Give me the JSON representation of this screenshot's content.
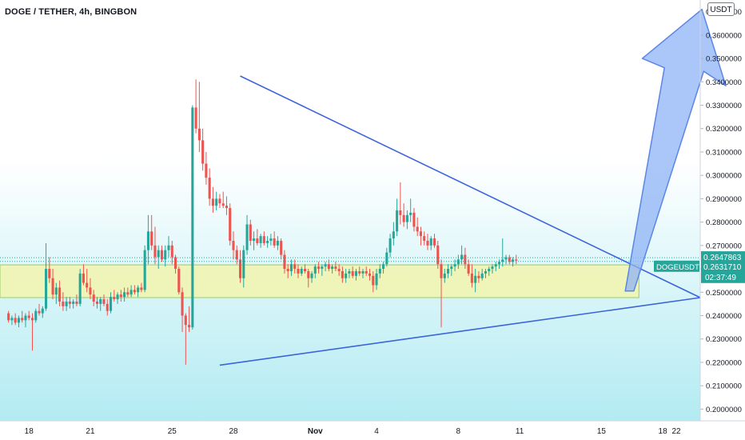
{
  "header": {
    "title": "DOGE / TETHER, 4h, BINGBON",
    "unit": "USDT"
  },
  "colors": {
    "up": "#26a69a",
    "down": "#ef5350",
    "trendline": "#3c64dc",
    "zone_fill": "#f2f4ae",
    "zone_stroke": "#9ccc65",
    "arrow_fill": "#8fb3f5",
    "arrow_stroke": "#5a86e6",
    "bg_top": "#ffffff",
    "bg_bottom": "#b2ebf2"
  },
  "chart_data": {
    "type": "candlestick",
    "y_axis": {
      "ylim": [
        0.195,
        0.375
      ],
      "ticks": [
        0.2,
        0.21,
        0.22,
        0.23,
        0.24,
        0.25,
        0.26,
        0.27,
        0.28,
        0.29,
        0.3,
        0.31,
        0.32,
        0.33,
        0.34,
        0.35,
        0.36,
        0.37
      ],
      "tick_labels": [
        "0.2000000",
        "0.2100000",
        "0.2200000",
        "0.2300000",
        "0.2400000",
        "0.2500000",
        "0.2600000",
        "0.2700000",
        "0.2800000",
        "0.2900000",
        "0.3000000",
        "0.3100000",
        "0.3200000",
        "0.3300000",
        "0.3400000",
        "0.3500000",
        "0.3600000",
        "0.3700000"
      ]
    },
    "x_axis": {
      "xlim": [
        -2.5,
        203
      ],
      "ticks": [
        {
          "label": "18",
          "bar": 6
        },
        {
          "label": "21",
          "bar": 24
        },
        {
          "label": "25",
          "bar": 48
        },
        {
          "label": "28",
          "bar": 66
        },
        {
          "label": "Nov",
          "bar": 90
        },
        {
          "label": "4",
          "bar": 108
        },
        {
          "label": "8",
          "bar": 132
        },
        {
          "label": "11",
          "bar": 150
        },
        {
          "label": "15",
          "bar": 174
        },
        {
          "label": "18",
          "bar": 192
        },
        {
          "label": "22",
          "bar": 216
        }
      ]
    },
    "price_lines": [
      {
        "value": 0.2647863,
        "label": "0.2647863",
        "color": "#26a69a"
      },
      {
        "value": 0.263171,
        "label": "0.2631710",
        "color": "#26a69a"
      }
    ],
    "symbol_label": "DOGEUSDT",
    "countdown": "02:37:49",
    "support_zone": {
      "bar_start": -2.5,
      "bar_end": 185,
      "low": 0.2477,
      "high": 0.2617
    },
    "triangle": {
      "upper": [
        {
          "bar": 68,
          "price": 0.3425
        },
        {
          "bar": 182,
          "price": 0.2626
        }
      ],
      "apex": {
        "bar": 203,
        "price": 0.2477
      },
      "lower": [
        {
          "bar": 62,
          "price": 0.2188
        },
        {
          "bar": 203,
          "price": 0.2477
        }
      ]
    },
    "arrow": {
      "body": [
        {
          "bar": 181,
          "price": 0.2505
        },
        {
          "bar": 183.5,
          "price": 0.2505
        },
        {
          "bar": 204,
          "price": 0.3445
        },
        {
          "bar": 210.5,
          "price": 0.3383
        },
        {
          "bar": 203.5,
          "price": 0.371
        },
        {
          "bar": 186,
          "price": 0.35
        },
        {
          "bar": 192.5,
          "price": 0.346
        }
      ]
    },
    "ohlc": [
      [
        0.241,
        0.242,
        0.237,
        0.238
      ],
      [
        0.238,
        0.24,
        0.236,
        0.239
      ],
      [
        0.239,
        0.241,
        0.236,
        0.237
      ],
      [
        0.237,
        0.24,
        0.235,
        0.239
      ],
      [
        0.239,
        0.242,
        0.237,
        0.238
      ],
      [
        0.238,
        0.241,
        0.235,
        0.24
      ],
      [
        0.24,
        0.242,
        0.238,
        0.239
      ],
      [
        0.239,
        0.241,
        0.225,
        0.238
      ],
      [
        0.238,
        0.243,
        0.237,
        0.242
      ],
      [
        0.242,
        0.245,
        0.24,
        0.241
      ],
      [
        0.241,
        0.244,
        0.239,
        0.243
      ],
      [
        0.243,
        0.271,
        0.242,
        0.26
      ],
      [
        0.26,
        0.265,
        0.254,
        0.256
      ],
      [
        0.256,
        0.26,
        0.247,
        0.249
      ],
      [
        0.249,
        0.254,
        0.245,
        0.252
      ],
      [
        0.252,
        0.255,
        0.244,
        0.246
      ],
      [
        0.246,
        0.25,
        0.242,
        0.244
      ],
      [
        0.244,
        0.248,
        0.242,
        0.246
      ],
      [
        0.246,
        0.248,
        0.243,
        0.245
      ],
      [
        0.245,
        0.247,
        0.243,
        0.246
      ],
      [
        0.246,
        0.249,
        0.244,
        0.245
      ],
      [
        0.245,
        0.26,
        0.244,
        0.258
      ],
      [
        0.258,
        0.262,
        0.253,
        0.254
      ],
      [
        0.254,
        0.26,
        0.25,
        0.252
      ],
      [
        0.252,
        0.256,
        0.247,
        0.249
      ],
      [
        0.249,
        0.251,
        0.244,
        0.246
      ],
      [
        0.246,
        0.248,
        0.243,
        0.245
      ],
      [
        0.245,
        0.248,
        0.242,
        0.247
      ],
      [
        0.247,
        0.249,
        0.244,
        0.245
      ],
      [
        0.245,
        0.247,
        0.24,
        0.242
      ],
      [
        0.242,
        0.25,
        0.241,
        0.248
      ],
      [
        0.248,
        0.251,
        0.246,
        0.247
      ],
      [
        0.247,
        0.25,
        0.245,
        0.249
      ],
      [
        0.249,
        0.251,
        0.246,
        0.248
      ],
      [
        0.248,
        0.252,
        0.246,
        0.25
      ],
      [
        0.25,
        0.252,
        0.248,
        0.249
      ],
      [
        0.249,
        0.253,
        0.248,
        0.251
      ],
      [
        0.251,
        0.253,
        0.249,
        0.25
      ],
      [
        0.25,
        0.253,
        0.248,
        0.252
      ],
      [
        0.252,
        0.254,
        0.25,
        0.251
      ],
      [
        0.251,
        0.27,
        0.25,
        0.268
      ],
      [
        0.268,
        0.283,
        0.262,
        0.276
      ],
      [
        0.276,
        0.283,
        0.268,
        0.27
      ],
      [
        0.27,
        0.278,
        0.262,
        0.265
      ],
      [
        0.265,
        0.27,
        0.26,
        0.268
      ],
      [
        0.268,
        0.27,
        0.263,
        0.264
      ],
      [
        0.264,
        0.27,
        0.261,
        0.268
      ],
      [
        0.268,
        0.274,
        0.265,
        0.27
      ],
      [
        0.27,
        0.272,
        0.262,
        0.265
      ],
      [
        0.265,
        0.266,
        0.258,
        0.26
      ],
      [
        0.26,
        0.261,
        0.249,
        0.25
      ],
      [
        0.25,
        0.252,
        0.233,
        0.24
      ],
      [
        0.24,
        0.241,
        0.219,
        0.236
      ],
      [
        0.236,
        0.244,
        0.233,
        0.235
      ],
      [
        0.235,
        0.33,
        0.234,
        0.329
      ],
      [
        0.329,
        0.341,
        0.318,
        0.32
      ],
      [
        0.32,
        0.34,
        0.31,
        0.315
      ],
      [
        0.315,
        0.32,
        0.302,
        0.305
      ],
      [
        0.305,
        0.31,
        0.296,
        0.299
      ],
      [
        0.299,
        0.303,
        0.287,
        0.29
      ],
      [
        0.29,
        0.295,
        0.284,
        0.287
      ],
      [
        0.287,
        0.293,
        0.285,
        0.29
      ],
      [
        0.29,
        0.292,
        0.286,
        0.288
      ],
      [
        0.288,
        0.293,
        0.286,
        0.287
      ],
      [
        0.287,
        0.291,
        0.283,
        0.286
      ],
      [
        0.286,
        0.288,
        0.27,
        0.272
      ],
      [
        0.272,
        0.276,
        0.264,
        0.268
      ],
      [
        0.268,
        0.27,
        0.262,
        0.264
      ],
      [
        0.264,
        0.268,
        0.254,
        0.256
      ],
      [
        0.256,
        0.27,
        0.252,
        0.268
      ],
      [
        0.268,
        0.283,
        0.266,
        0.279
      ],
      [
        0.279,
        0.281,
        0.27,
        0.272
      ],
      [
        0.272,
        0.276,
        0.268,
        0.273
      ],
      [
        0.273,
        0.277,
        0.27,
        0.271
      ],
      [
        0.271,
        0.275,
        0.269,
        0.274
      ],
      [
        0.274,
        0.276,
        0.27,
        0.271
      ],
      [
        0.271,
        0.274,
        0.269,
        0.272
      ],
      [
        0.272,
        0.275,
        0.27,
        0.273
      ],
      [
        0.273,
        0.276,
        0.269,
        0.27
      ],
      [
        0.27,
        0.274,
        0.268,
        0.272
      ],
      [
        0.272,
        0.273,
        0.264,
        0.266
      ],
      [
        0.266,
        0.268,
        0.258,
        0.26
      ],
      [
        0.26,
        0.262,
        0.256,
        0.259
      ],
      [
        0.259,
        0.264,
        0.257,
        0.262
      ],
      [
        0.262,
        0.264,
        0.258,
        0.26
      ],
      [
        0.26,
        0.262,
        0.256,
        0.258
      ],
      [
        0.258,
        0.261,
        0.257,
        0.26
      ],
      [
        0.26,
        0.262,
        0.258,
        0.259
      ],
      [
        0.259,
        0.26,
        0.252,
        0.256
      ],
      [
        0.256,
        0.259,
        0.254,
        0.258
      ],
      [
        0.258,
        0.262,
        0.256,
        0.261
      ],
      [
        0.261,
        0.263,
        0.258,
        0.26
      ],
      [
        0.26,
        0.262,
        0.257,
        0.261
      ],
      [
        0.261,
        0.263,
        0.259,
        0.262
      ],
      [
        0.262,
        0.264,
        0.259,
        0.26
      ],
      [
        0.26,
        0.262,
        0.258,
        0.261
      ],
      [
        0.261,
        0.263,
        0.259,
        0.26
      ],
      [
        0.26,
        0.262,
        0.257,
        0.259
      ],
      [
        0.259,
        0.261,
        0.254,
        0.256
      ],
      [
        0.256,
        0.26,
        0.254,
        0.258
      ],
      [
        0.258,
        0.26,
        0.256,
        0.259
      ],
      [
        0.259,
        0.261,
        0.256,
        0.257
      ],
      [
        0.257,
        0.26,
        0.255,
        0.259
      ],
      [
        0.259,
        0.261,
        0.257,
        0.258
      ],
      [
        0.258,
        0.26,
        0.256,
        0.259
      ],
      [
        0.259,
        0.261,
        0.257,
        0.258
      ],
      [
        0.258,
        0.26,
        0.255,
        0.257
      ],
      [
        0.257,
        0.259,
        0.25,
        0.253
      ],
      [
        0.253,
        0.26,
        0.251,
        0.258
      ],
      [
        0.258,
        0.262,
        0.256,
        0.26
      ],
      [
        0.26,
        0.263,
        0.258,
        0.262
      ],
      [
        0.262,
        0.269,
        0.261,
        0.267
      ],
      [
        0.267,
        0.275,
        0.265,
        0.273
      ],
      [
        0.273,
        0.28,
        0.27,
        0.276
      ],
      [
        0.276,
        0.29,
        0.274,
        0.285
      ],
      [
        0.285,
        0.297,
        0.279,
        0.283
      ],
      [
        0.283,
        0.288,
        0.278,
        0.28
      ],
      [
        0.28,
        0.285,
        0.277,
        0.283
      ],
      [
        0.283,
        0.29,
        0.28,
        0.284
      ],
      [
        0.284,
        0.286,
        0.276,
        0.278
      ],
      [
        0.278,
        0.282,
        0.274,
        0.276
      ],
      [
        0.276,
        0.278,
        0.27,
        0.274
      ],
      [
        0.274,
        0.276,
        0.27,
        0.272
      ],
      [
        0.272,
        0.275,
        0.268,
        0.27
      ],
      [
        0.27,
        0.274,
        0.268,
        0.273
      ],
      [
        0.273,
        0.275,
        0.269,
        0.27
      ],
      [
        0.27,
        0.272,
        0.26,
        0.262
      ],
      [
        0.262,
        0.264,
        0.235,
        0.256
      ],
      [
        0.256,
        0.26,
        0.254,
        0.258
      ],
      [
        0.258,
        0.262,
        0.256,
        0.26
      ],
      [
        0.26,
        0.262,
        0.257,
        0.261
      ],
      [
        0.261,
        0.264,
        0.259,
        0.262
      ],
      [
        0.262,
        0.266,
        0.26,
        0.264
      ],
      [
        0.264,
        0.27,
        0.262,
        0.266
      ],
      [
        0.266,
        0.269,
        0.26,
        0.262
      ],
      [
        0.262,
        0.264,
        0.257,
        0.258
      ],
      [
        0.258,
        0.262,
        0.252,
        0.254
      ],
      [
        0.254,
        0.26,
        0.25,
        0.257
      ],
      [
        0.257,
        0.259,
        0.254,
        0.256
      ],
      [
        0.256,
        0.26,
        0.255,
        0.258
      ],
      [
        0.258,
        0.26,
        0.256,
        0.259
      ],
      [
        0.259,
        0.261,
        0.257,
        0.26
      ],
      [
        0.26,
        0.262,
        0.258,
        0.261
      ],
      [
        0.261,
        0.263,
        0.259,
        0.262
      ],
      [
        0.262,
        0.264,
        0.26,
        0.263
      ],
      [
        0.263,
        0.273,
        0.261,
        0.264
      ],
      [
        0.264,
        0.266,
        0.262,
        0.265
      ],
      [
        0.265,
        0.266,
        0.262,
        0.263
      ],
      [
        0.263,
        0.265,
        0.261,
        0.264
      ],
      [
        0.264,
        0.266,
        0.262,
        0.2635
      ]
    ]
  }
}
